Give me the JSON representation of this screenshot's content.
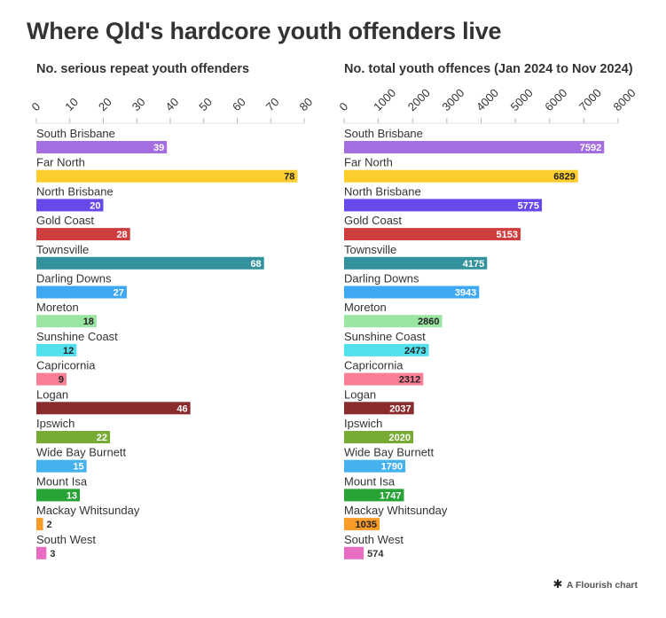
{
  "title": "Where Qld's hardcore youth offenders live",
  "footer": {
    "icon": "flourish-star-icon",
    "text": "A Flourish chart"
  },
  "chart_data": [
    {
      "type": "bar",
      "orientation": "horizontal",
      "title": "No. serious repeat youth offenders",
      "categories": [
        "South Brisbane",
        "Far North",
        "North Brisbane",
        "Gold Coast",
        "Townsville",
        "Darling Downs",
        "Moreton",
        "Sunshine Coast",
        "Capricornia",
        "Logan",
        "Ipswich",
        "Wide Bay Burnett",
        "Mount Isa",
        "Mackay Whitsunday",
        "South West"
      ],
      "values": [
        39,
        78,
        20,
        28,
        68,
        27,
        18,
        12,
        9,
        46,
        22,
        15,
        13,
        2,
        3
      ],
      "xlim": [
        0,
        80
      ],
      "ticks": [
        0,
        10,
        20,
        30,
        40,
        50,
        60,
        70,
        80
      ],
      "colors": [
        "#a56ee0",
        "#fdcd2e",
        "#6749ea",
        "#cf3e3f",
        "#34929c",
        "#3fa8f4",
        "#99e5a1",
        "#51e0ec",
        "#fa7f96",
        "#8a2b2e",
        "#77ab34",
        "#45b2f0",
        "#28a436",
        "#f99c28",
        "#e86dc2"
      ]
    },
    {
      "type": "bar",
      "orientation": "horizontal",
      "title": "No. total youth offences (Jan 2024 to Nov 2024)",
      "categories": [
        "South Brisbane",
        "Far North",
        "North Brisbane",
        "Gold Coast",
        "Townsville",
        "Darling Downs",
        "Moreton",
        "Sunshine Coast",
        "Capricornia",
        "Logan",
        "Ipswich",
        "Wide Bay Burnett",
        "Mount Isa",
        "Mackay Whitsunday",
        "South West"
      ],
      "values": [
        7592,
        6829,
        5775,
        5153,
        4175,
        3943,
        2860,
        2473,
        2312,
        2037,
        2020,
        1790,
        1747,
        1035,
        574
      ],
      "xlim": [
        0,
        8000
      ],
      "ticks": [
        0,
        1000,
        2000,
        3000,
        4000,
        5000,
        6000,
        7000,
        8000
      ],
      "colors": [
        "#a56ee0",
        "#fdcd2e",
        "#6749ea",
        "#cf3e3f",
        "#34929c",
        "#3fa8f4",
        "#99e5a1",
        "#51e0ec",
        "#fa7f96",
        "#8a2b2e",
        "#77ab34",
        "#45b2f0",
        "#28a436",
        "#f99c28",
        "#e86dc2"
      ]
    }
  ]
}
